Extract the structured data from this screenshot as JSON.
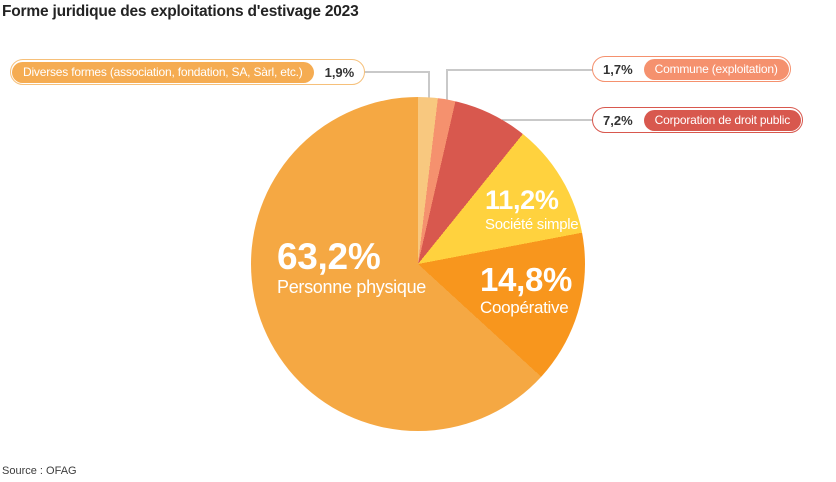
{
  "title": "Forme juridique des exploitations d'estivage 2023",
  "source": "Source : OFAG",
  "colors": {
    "background": "#ffffff",
    "leader_line": "#c9c9c9",
    "percent_text": "#333333",
    "label_text_on_color": "#ffffff",
    "title_text": "#232323"
  },
  "chart_data": {
    "type": "pie",
    "title": "Forme juridique des exploitations d'estivage 2023",
    "unit": "%",
    "direction": "clockwise",
    "start_angle_deg": 0,
    "legend_position": "callouts-and-inside-labels",
    "slices": [
      {
        "label": "Diverses formes (association, fondation, SA, Sàrl, etc.)",
        "value": 1.9,
        "display": "1,9%",
        "color": "#F8C87F",
        "pill_fill": "#F5AC52",
        "pill_border": "#F6C07A",
        "label_placement": "callout-left"
      },
      {
        "label": "Commune (exploitation)",
        "value": 1.7,
        "display": "1,7%",
        "color": "#F5916E",
        "pill_fill": "#F5916E",
        "pill_border": "#F5916E",
        "label_placement": "callout-right"
      },
      {
        "label": "Corporation de droit public",
        "value": 7.2,
        "display": "7,2%",
        "color": "#D8584E",
        "pill_fill": "#D8584E",
        "pill_border": "#D8584E",
        "label_placement": "callout-right"
      },
      {
        "label": "Société simple",
        "value": 11.2,
        "display": "11,2%",
        "color": "#FFD23E",
        "label_placement": "inside"
      },
      {
        "label": "Coopérative",
        "value": 14.8,
        "display": "14,8%",
        "color": "#F8961D",
        "label_placement": "inside"
      },
      {
        "label": "Personne physique",
        "value": 63.2,
        "display": "63,2%",
        "color": "#F5A843",
        "label_placement": "inside"
      }
    ]
  }
}
